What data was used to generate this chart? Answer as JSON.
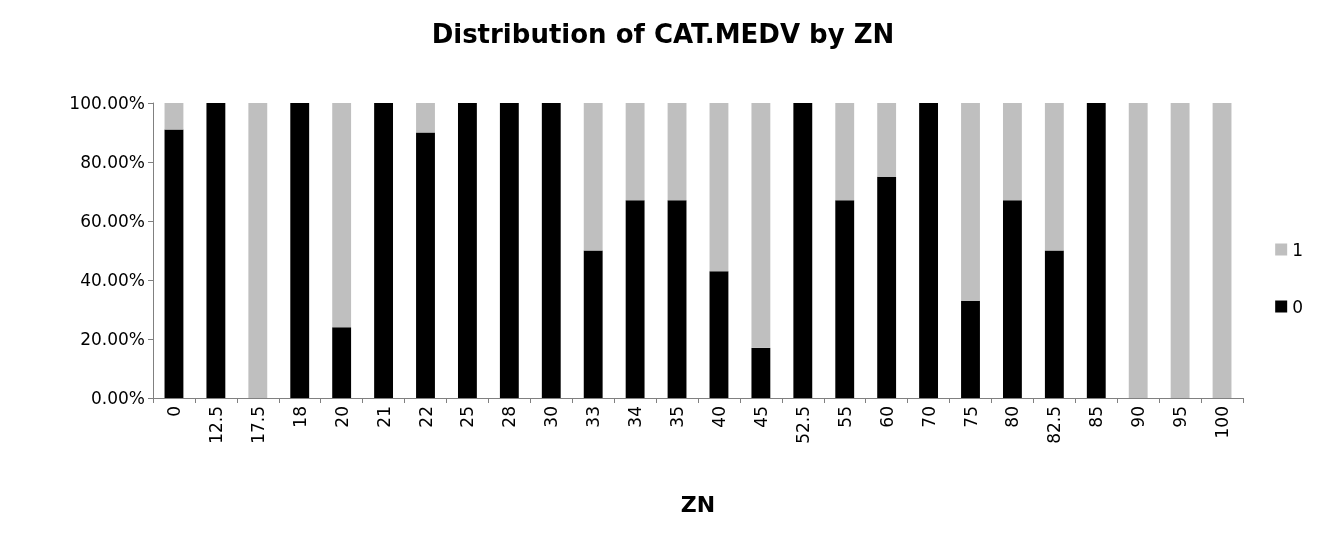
{
  "chart_data": {
    "type": "bar",
    "title": "Distribution of CAT.MEDV by ZN",
    "xlabel": "ZN",
    "stacked": true,
    "grid": false,
    "legend": "right",
    "categories": [
      "0",
      "12.5",
      "17.5",
      "18",
      "20",
      "21",
      "22",
      "25",
      "28",
      "30",
      "33",
      "34",
      "35",
      "40",
      "45",
      "52.5",
      "55",
      "60",
      "70",
      "75",
      "80",
      "82.5",
      "85",
      "90",
      "95",
      "100"
    ],
    "series": [
      {
        "name": "0",
        "color": "#000000",
        "values": [
          91,
          100,
          0,
          100,
          24,
          100,
          90,
          100,
          100,
          100,
          50,
          67,
          67,
          43,
          17,
          100,
          67,
          75,
          100,
          33,
          67,
          50,
          100,
          0,
          0,
          0
        ]
      },
      {
        "name": "1",
        "color": "#bfbfbf",
        "values": [
          9,
          0,
          100,
          0,
          76,
          0,
          10,
          0,
          0,
          0,
          50,
          33,
          33,
          57,
          83,
          0,
          33,
          25,
          0,
          67,
          33,
          50,
          0,
          100,
          100,
          100
        ]
      }
    ],
    "ylim": [
      0,
      100
    ],
    "yticks": [
      {
        "value": 0,
        "label": "0.00%"
      },
      {
        "value": 20,
        "label": "20.00%"
      },
      {
        "value": 40,
        "label": "40.00%"
      },
      {
        "value": 60,
        "label": "60.00%"
      },
      {
        "value": 80,
        "label": "80.00%"
      },
      {
        "value": 100,
        "label": "100.00%"
      }
    ]
  }
}
